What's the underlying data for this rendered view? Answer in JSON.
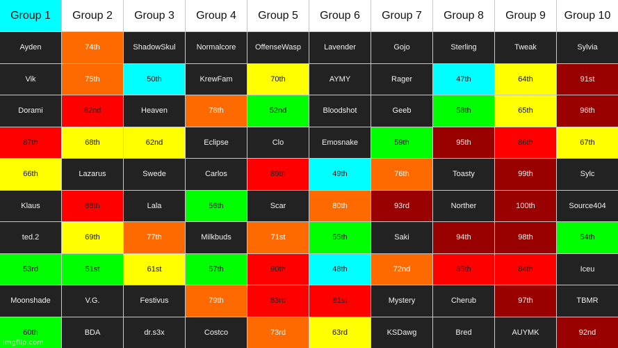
{
  "colors": {
    "cyan": "#00ffff",
    "white": "#ffffff",
    "dark": "#222222",
    "orange": "#ff6a00",
    "yellow": "#ffff00",
    "red": "#ff0000",
    "darkred": "#990000",
    "green": "#00ff00"
  },
  "headers": [
    {
      "text": "Group 1",
      "bg": "cyan"
    },
    {
      "text": "Group 2",
      "bg": "white"
    },
    {
      "text": "Group 3",
      "bg": "white"
    },
    {
      "text": "Group 4",
      "bg": "white"
    },
    {
      "text": "Group 5",
      "bg": "white"
    },
    {
      "text": "Group 6",
      "bg": "white"
    },
    {
      "text": "Group 7",
      "bg": "white"
    },
    {
      "text": "Group 8",
      "bg": "white"
    },
    {
      "text": "Group 9",
      "bg": "white"
    },
    {
      "text": "Group 10",
      "bg": "white"
    }
  ],
  "rows": [
    [
      {
        "text": "Ayden",
        "bg": "dark"
      },
      {
        "text": "74th",
        "bg": "orange"
      },
      {
        "text": "ShadowSkul",
        "bg": "dark"
      },
      {
        "text": "Normalcore",
        "bg": "dark"
      },
      {
        "text": "OffenseWasp",
        "bg": "dark"
      },
      {
        "text": "Lavender",
        "bg": "dark"
      },
      {
        "text": "Gojo",
        "bg": "dark"
      },
      {
        "text": "Sterling",
        "bg": "dark"
      },
      {
        "text": "Tweak",
        "bg": "dark"
      },
      {
        "text": "Sylvia",
        "bg": "dark"
      }
    ],
    [
      {
        "text": "Vik",
        "bg": "dark"
      },
      {
        "text": "75th",
        "bg": "orange"
      },
      {
        "text": "50th",
        "bg": "cyan"
      },
      {
        "text": "KrewFam",
        "bg": "dark"
      },
      {
        "text": "70th",
        "bg": "yellow"
      },
      {
        "text": "AYMY",
        "bg": "dark"
      },
      {
        "text": "Rager",
        "bg": "dark"
      },
      {
        "text": "47th",
        "bg": "cyan"
      },
      {
        "text": "64th",
        "bg": "yellow"
      },
      {
        "text": "91st",
        "bg": "darkred"
      }
    ],
    [
      {
        "text": "Dorami",
        "bg": "dark"
      },
      {
        "text": "82nd",
        "bg": "red"
      },
      {
        "text": "Heaven",
        "bg": "dark"
      },
      {
        "text": "78th",
        "bg": "orange"
      },
      {
        "text": "52nd",
        "bg": "green"
      },
      {
        "text": "Bloodshot",
        "bg": "dark"
      },
      {
        "text": "Geeb",
        "bg": "dark"
      },
      {
        "text": "58th",
        "bg": "green"
      },
      {
        "text": "65th",
        "bg": "yellow"
      },
      {
        "text": "96th",
        "bg": "darkred"
      }
    ],
    [
      {
        "text": "87th",
        "bg": "red"
      },
      {
        "text": "68th",
        "bg": "yellow"
      },
      {
        "text": "62nd",
        "bg": "yellow"
      },
      {
        "text": "Eclipse",
        "bg": "dark"
      },
      {
        "text": "Clo",
        "bg": "dark"
      },
      {
        "text": "Emosnake",
        "bg": "dark"
      },
      {
        "text": "59th",
        "bg": "green"
      },
      {
        "text": "95th",
        "bg": "darkred"
      },
      {
        "text": "86th",
        "bg": "red"
      },
      {
        "text": "67th",
        "bg": "yellow"
      }
    ],
    [
      {
        "text": "66th",
        "bg": "yellow"
      },
      {
        "text": "Lazarus",
        "bg": "dark"
      },
      {
        "text": "Swede",
        "bg": "dark"
      },
      {
        "text": "Carlos",
        "bg": "dark"
      },
      {
        "text": "89th",
        "bg": "red"
      },
      {
        "text": "49th",
        "bg": "cyan"
      },
      {
        "text": "76th",
        "bg": "orange"
      },
      {
        "text": "Toasty",
        "bg": "dark"
      },
      {
        "text": "99th",
        "bg": "darkred"
      },
      {
        "text": "Sylc",
        "bg": "dark"
      }
    ],
    [
      {
        "text": "Klaus",
        "bg": "dark"
      },
      {
        "text": "88th",
        "bg": "red"
      },
      {
        "text": "Lala",
        "bg": "dark"
      },
      {
        "text": "56th",
        "bg": "green"
      },
      {
        "text": "Scar",
        "bg": "dark"
      },
      {
        "text": "80th",
        "bg": "orange"
      },
      {
        "text": "93rd",
        "bg": "darkred"
      },
      {
        "text": "Norther",
        "bg": "dark"
      },
      {
        "text": "100th",
        "bg": "darkred"
      },
      {
        "text": "Source404",
        "bg": "dark"
      }
    ],
    [
      {
        "text": "ted.2",
        "bg": "dark"
      },
      {
        "text": "69th",
        "bg": "yellow"
      },
      {
        "text": "77th",
        "bg": "orange"
      },
      {
        "text": "Milkbuds",
        "bg": "dark"
      },
      {
        "text": "71st",
        "bg": "orange"
      },
      {
        "text": "55th",
        "bg": "green"
      },
      {
        "text": "Saki",
        "bg": "dark"
      },
      {
        "text": "94th",
        "bg": "darkred"
      },
      {
        "text": "98th",
        "bg": "darkred"
      },
      {
        "text": "54th",
        "bg": "green"
      }
    ],
    [
      {
        "text": "53rd",
        "bg": "green"
      },
      {
        "text": "51st",
        "bg": "green"
      },
      {
        "text": "61st",
        "bg": "yellow"
      },
      {
        "text": "57th",
        "bg": "green"
      },
      {
        "text": "90th",
        "bg": "red"
      },
      {
        "text": "48th",
        "bg": "cyan"
      },
      {
        "text": "72nd",
        "bg": "orange"
      },
      {
        "text": "85th",
        "bg": "red"
      },
      {
        "text": "84th",
        "bg": "red"
      },
      {
        "text": "Iceu",
        "bg": "dark"
      }
    ],
    [
      {
        "text": "Moonshade",
        "bg": "dark"
      },
      {
        "text": "V.G.",
        "bg": "dark"
      },
      {
        "text": "Festivus",
        "bg": "dark"
      },
      {
        "text": "79th",
        "bg": "orange"
      },
      {
        "text": "83rd",
        "bg": "red"
      },
      {
        "text": "81st",
        "bg": "red"
      },
      {
        "text": "Mystery",
        "bg": "dark"
      },
      {
        "text": "Cherub",
        "bg": "dark"
      },
      {
        "text": "97th",
        "bg": "darkred"
      },
      {
        "text": "TBMR",
        "bg": "dark"
      }
    ],
    [
      {
        "text": "60th",
        "bg": "green"
      },
      {
        "text": "BDA",
        "bg": "dark"
      },
      {
        "text": "dr.s3x",
        "bg": "dark"
      },
      {
        "text": "Costco",
        "bg": "dark"
      },
      {
        "text": "73rd",
        "bg": "orange"
      },
      {
        "text": "63rd",
        "bg": "yellow"
      },
      {
        "text": "KSDawg",
        "bg": "dark"
      },
      {
        "text": "Bred",
        "bg": "dark"
      },
      {
        "text": "AUYMK",
        "bg": "dark"
      },
      {
        "text": "92nd",
        "bg": "darkred"
      }
    ]
  ],
  "watermark": "imgflip.com"
}
